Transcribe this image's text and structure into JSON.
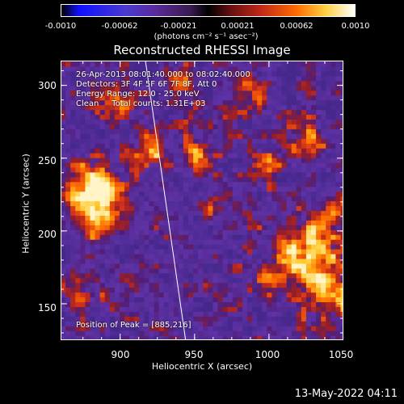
{
  "colorbar": {
    "ticks": [
      "-0.0010",
      "-0.00062",
      "-0.00021",
      "0.00021",
      "0.00062",
      "0.0010"
    ],
    "units": "(photons cm⁻² s⁻¹ asec⁻²)"
  },
  "annotations": {
    "time_range": "26-Apr-2013 08:01:40.000 to 08:02:40.000",
    "detectors": "Detectors: 3F 4F 5F 6F 7F 8F, Att 0",
    "energy_range": "Energy Range: 12.0 - 25.0 keV",
    "clean_counts": "Clean     Total counts: 1.31E+03",
    "peak": "Position of Peak = [885,216]"
  },
  "timestamp": "13-May-2022 04:11",
  "chart_data": {
    "type": "heatmap",
    "title": "Reconstructed RHESSI Image",
    "xlabel": "Heliocentric X (arcsec)",
    "ylabel": "Heliocentric Y (arcsec)",
    "xlim": [
      860,
      1050
    ],
    "ylim": [
      125,
      317
    ],
    "x_ticks": [
      900,
      950,
      1000,
      1050
    ],
    "y_ticks": [
      150,
      200,
      250,
      300
    ],
    "x_tick_labels": [
      "900",
      "950",
      "1000",
      "1050"
    ],
    "y_tick_labels": [
      "150",
      "200",
      "250",
      "300"
    ],
    "colorbar_range": [
      -0.001,
      0.001
    ],
    "colormap": "purple-red-yellow-white",
    "peak_position": [
      885,
      216
    ],
    "limb_line": [
      [
        917,
        317
      ],
      [
        944,
        125
      ]
    ],
    "colors": {
      "background": "#000000",
      "low": "#5a2a9c",
      "mid": "#d0321e",
      "high": "#fff8c8"
    }
  }
}
